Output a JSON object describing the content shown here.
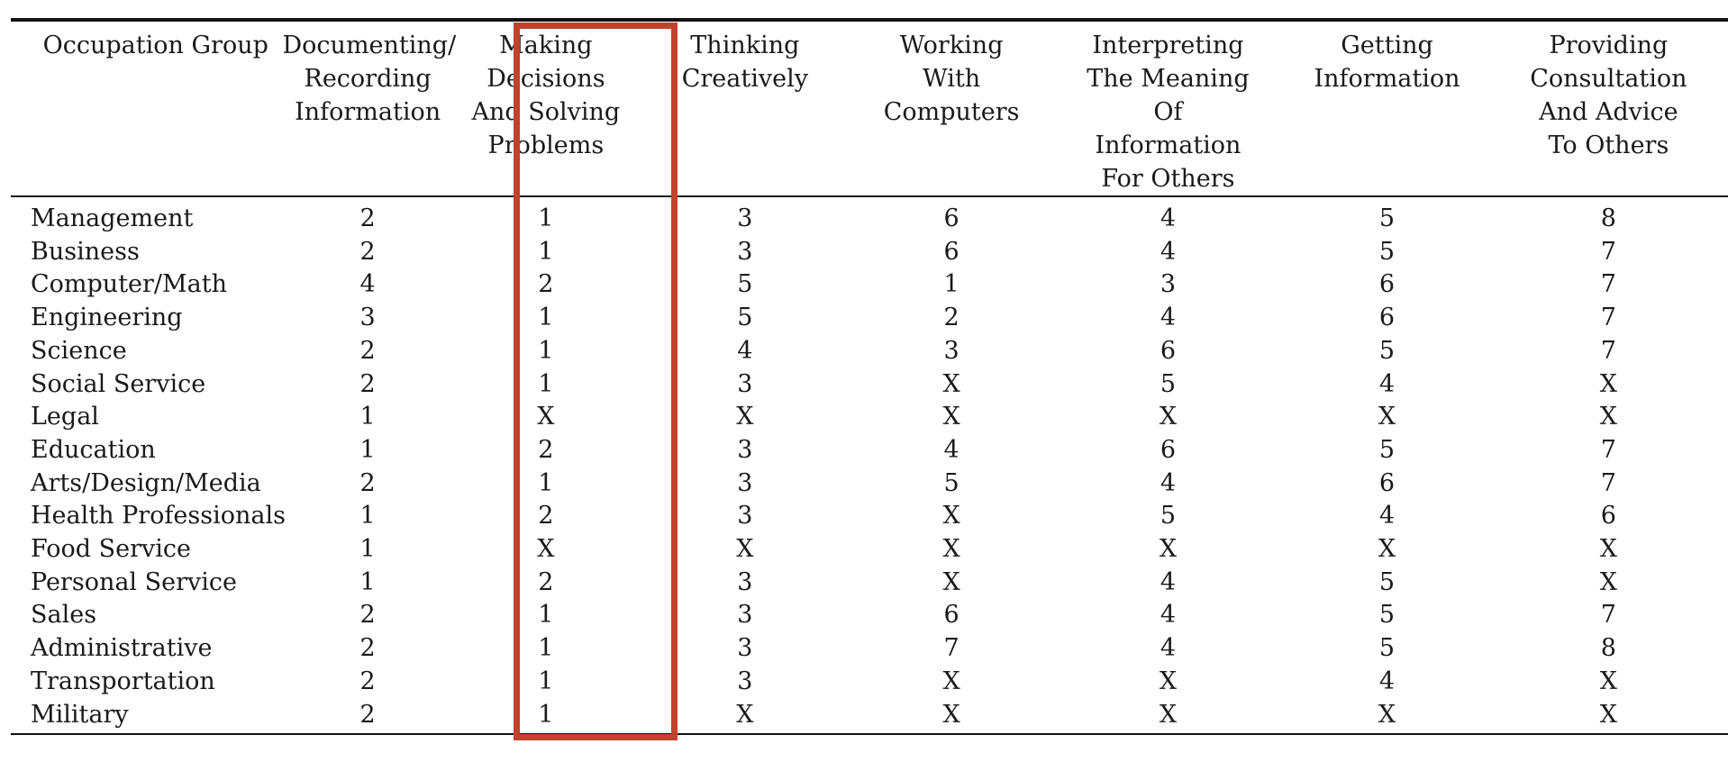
{
  "table": {
    "headers": [
      "Occupation Group",
      "Documenting/ Recording Information",
      "Making Decisions And Solving Problems",
      "Thinking Creatively",
      "Working With Computers",
      "Interpreting The Meaning Of Information For Others",
      "Getting Information",
      "Providing Consultation And Advice To Others"
    ],
    "header_lines": [
      [
        "Occupation Group"
      ],
      [
        "Documenting/",
        "Recording",
        "Information"
      ],
      [
        "Making",
        "Decisions",
        "And Solving",
        "Problems"
      ],
      [
        "Thinking",
        "Creatively"
      ],
      [
        "Working",
        "With",
        "Computers"
      ],
      [
        "Interpreting",
        "The Meaning",
        "Of",
        "Information",
        "For Others"
      ],
      [
        "Getting",
        "Information"
      ],
      [
        "Providing",
        "Consultation",
        "And Advice",
        "To Others"
      ]
    ],
    "rows": [
      [
        "Management",
        "2",
        "1",
        "3",
        "6",
        "4",
        "5",
        "8"
      ],
      [
        "Business",
        "2",
        "1",
        "3",
        "6",
        "4",
        "5",
        "7"
      ],
      [
        "Computer/Math",
        "4",
        "2",
        "5",
        "1",
        "3",
        "6",
        "7"
      ],
      [
        "Engineering",
        "3",
        "1",
        "5",
        "2",
        "4",
        "6",
        "7"
      ],
      [
        "Science",
        "2",
        "1",
        "4",
        "3",
        "6",
        "5",
        "7"
      ],
      [
        "Social Service",
        "2",
        "1",
        "3",
        "X",
        "5",
        "4",
        "X"
      ],
      [
        "Legal",
        "1",
        "X",
        "X",
        "X",
        "X",
        "X",
        "X"
      ],
      [
        "Education",
        "1",
        "2",
        "3",
        "4",
        "6",
        "5",
        "7"
      ],
      [
        "Arts/Design/Media",
        "2",
        "1",
        "3",
        "5",
        "4",
        "6",
        "7"
      ],
      [
        "Health Professionals",
        "1",
        "2",
        "3",
        "X",
        "5",
        "4",
        "6"
      ],
      [
        "Food Service",
        "1",
        "X",
        "X",
        "X",
        "X",
        "X",
        "X"
      ],
      [
        "Personal Service",
        "1",
        "2",
        "3",
        "X",
        "4",
        "5",
        "X"
      ],
      [
        "Sales",
        "2",
        "1",
        "3",
        "6",
        "4",
        "5",
        "7"
      ],
      [
        "Administrative",
        "2",
        "1",
        "3",
        "7",
        "4",
        "5",
        "8"
      ],
      [
        "Transportation",
        "2",
        "1",
        "3",
        "X",
        "X",
        "4",
        "X"
      ],
      [
        "Military",
        "2",
        "1",
        "X",
        "X",
        "X",
        "X",
        "X"
      ]
    ]
  },
  "highlight": {
    "column_index": 2,
    "color": "#c0432b"
  },
  "colors": {
    "text": "#1a1a1a",
    "rule": "#111111",
    "background": "#ffffff"
  }
}
